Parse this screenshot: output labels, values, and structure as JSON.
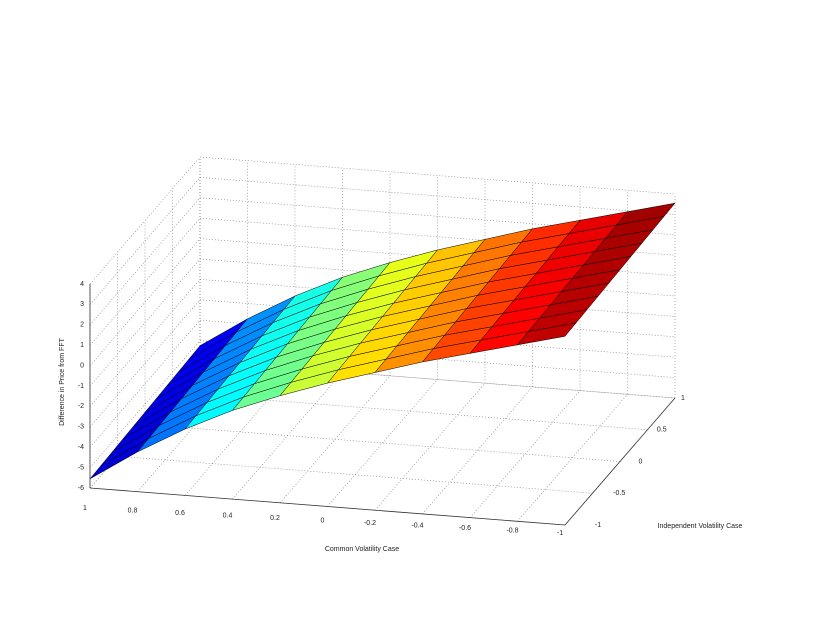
{
  "chart_data": {
    "type": "surface",
    "xlabel": "Common Volatility Case",
    "ylabel": "Independent Volatility Case",
    "zlabel": "Difference in Price from FFT",
    "x": [
      1,
      0.8,
      0.6,
      0.4,
      0.2,
      0,
      -0.2,
      -0.4,
      -0.6,
      -0.8,
      -1
    ],
    "y": [
      -1,
      -0.8,
      -0.6,
      -0.4,
      -0.2,
      0,
      0.2,
      0.4,
      0.6,
      0.8,
      1
    ],
    "z": [
      [
        -5.55,
        -5.52,
        -5.49,
        -5.46,
        -5.43,
        -5.4,
        -5.37,
        -5.34,
        -5.31,
        -5.28,
        -5.25
      ],
      [
        -4.05,
        -4.02,
        -3.99,
        -3.96,
        -3.93,
        -3.9,
        -3.87,
        -3.84,
        -3.81,
        -3.78,
        -3.75
      ],
      [
        -2.75,
        -2.72,
        -2.69,
        -2.66,
        -2.63,
        -2.6,
        -2.57,
        -2.54,
        -2.51,
        -2.48,
        -2.45
      ],
      [
        -1.65,
        -1.62,
        -1.59,
        -1.56,
        -1.53,
        -1.5,
        -1.47,
        -1.44,
        -1.41,
        -1.38,
        -1.35
      ],
      [
        -0.75,
        -0.72,
        -0.69,
        -0.66,
        -0.63,
        -0.6,
        -0.57,
        -0.54,
        -0.51,
        -0.48,
        -0.45
      ],
      [
        0.05,
        0.08,
        0.11,
        0.14,
        0.17,
        0.2,
        0.23,
        0.26,
        0.29,
        0.32,
        0.35
      ],
      [
        0.75,
        0.78,
        0.81,
        0.84,
        0.87,
        0.9,
        0.93,
        0.96,
        0.99,
        1.02,
        1.05
      ],
      [
        1.45,
        1.48,
        1.51,
        1.54,
        1.57,
        1.6,
        1.63,
        1.66,
        1.69,
        1.72,
        1.75
      ],
      [
        2.05,
        2.08,
        2.11,
        2.14,
        2.17,
        2.2,
        2.23,
        2.26,
        2.29,
        2.32,
        2.35
      ],
      [
        2.65,
        2.68,
        2.71,
        2.74,
        2.77,
        2.8,
        2.83,
        2.86,
        2.89,
        2.92,
        2.95
      ],
      [
        3.25,
        3.28,
        3.31,
        3.34,
        3.37,
        3.4,
        3.43,
        3.46,
        3.49,
        3.52,
        3.55
      ]
    ],
    "colormap": "jet",
    "xlim": [
      -1,
      1
    ],
    "ylim": [
      -1,
      1
    ],
    "zlim": [
      -6,
      4
    ],
    "xticks": [
      1,
      0.8,
      0.6,
      0.4,
      0.2,
      0,
      -0.2,
      -0.4,
      -0.6,
      -0.8,
      -1
    ],
    "yticks": [
      -1,
      -0.5,
      0,
      0.5,
      1
    ],
    "zticks": [
      -6,
      -5,
      -4,
      -3,
      -2,
      -1,
      0,
      1,
      2,
      3,
      4
    ],
    "grid": true
  }
}
